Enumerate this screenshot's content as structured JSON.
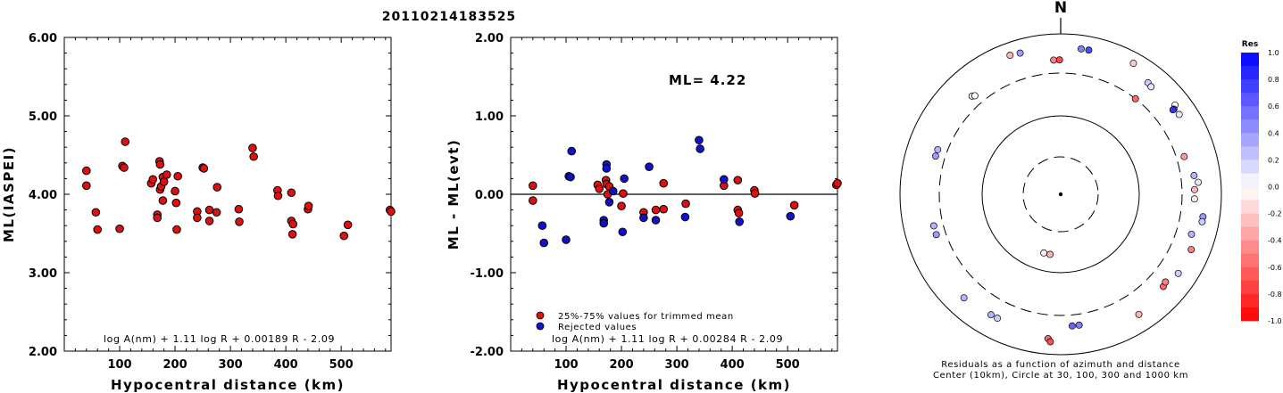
{
  "title": "20110214183525",
  "left_plot": {
    "ylabel": "ML(IASPEI)",
    "xlabel": "Hypocentral distance (km)",
    "equation": "log A(nm) + 1.11 log R + 0.00189 R - 2.09",
    "ytick_labels": [
      "2.00",
      "3.00",
      "4.00",
      "5.00",
      "6.00"
    ],
    "xtick_labels": [
      "100",
      "200",
      "300",
      "400",
      "500"
    ]
  },
  "middle_plot": {
    "ylabel": "ML - ML(evt)",
    "xlabel": "Hypocentral distance (km)",
    "equation": "log A(nm) + 1.11 log R + 0.00284 R - 2.09",
    "ml_text": "ML= 4.22",
    "legend_used": "25%-75% values for trimmed mean",
    "legend_rejected": "Rejected values",
    "ytick_labels": [
      "-2.00",
      "-1.00",
      "0.00",
      "1.00",
      "2.00"
    ],
    "xtick_labels": [
      "100",
      "200",
      "300",
      "400",
      "500"
    ]
  },
  "polar_plot": {
    "north_label": "N",
    "caption_line1": "Residuals as a function of azimuth and distance",
    "caption_line2": "Center (10km), Circle at 30, 100, 300 and 1000 km"
  },
  "colorbar": {
    "title": "Res",
    "labels": [
      "1.0",
      "0.8",
      "0.6",
      "0.4",
      "0.2",
      "0.0",
      "-0.2",
      "-0.4",
      "-0.6",
      "-0.8",
      "-1.0"
    ]
  },
  "colors": {
    "used": "#dd1111",
    "rejected": "#1111cc",
    "residual_pos": "#0000ff",
    "residual_neg": "#ff0000"
  },
  "chart_data": [
    {
      "type": "scatter",
      "ylabel": "ML(IASPEI)",
      "xlabel": "Hypocentral distance (km)",
      "xlim": [
        0,
        590
      ],
      "ylim": [
        2.0,
        6.0
      ],
      "points": [
        [
          40,
          4.3
        ],
        [
          40,
          4.11
        ],
        [
          57,
          3.77
        ],
        [
          60,
          3.55
        ],
        [
          100,
          3.56
        ],
        [
          105,
          4.36
        ],
        [
          108,
          4.34
        ],
        [
          110,
          4.67
        ],
        [
          157,
          4.14
        ],
        [
          160,
          4.19
        ],
        [
          168,
          3.74
        ],
        [
          168,
          3.7
        ],
        [
          172,
          4.42
        ],
        [
          173,
          4.38
        ],
        [
          173,
          4.06
        ],
        [
          175,
          4.1
        ],
        [
          178,
          3.92
        ],
        [
          178,
          4.22
        ],
        [
          180,
          4.16
        ],
        [
          185,
          4.25
        ],
        [
          200,
          4.04
        ],
        [
          202,
          3.89
        ],
        [
          203,
          3.55
        ],
        [
          205,
          4.23
        ],
        [
          240,
          3.78
        ],
        [
          240,
          3.7
        ],
        [
          250,
          4.34
        ],
        [
          252,
          4.33
        ],
        [
          262,
          3.8
        ],
        [
          262,
          3.66
        ],
        [
          275,
          3.77
        ],
        [
          276,
          4.09
        ],
        [
          315,
          3.81
        ],
        [
          316,
          3.65
        ],
        [
          340,
          4.59
        ],
        [
          342,
          4.48
        ],
        [
          385,
          4.05
        ],
        [
          386,
          3.98
        ],
        [
          410,
          4.02
        ],
        [
          410,
          3.66
        ],
        [
          412,
          3.49
        ],
        [
          413,
          3.62
        ],
        [
          440,
          3.81
        ],
        [
          441,
          3.85
        ],
        [
          505,
          3.47
        ],
        [
          512,
          3.61
        ],
        [
          588,
          3.8
        ],
        [
          590,
          3.78
        ]
      ]
    },
    {
      "type": "scatter",
      "ylabel": "ML - ML(evt)",
      "xlabel": "Hypocentral distance (km)",
      "xlim": [
        0,
        590
      ],
      "ylim": [
        -2.0,
        2.0
      ],
      "reference_line": 0.0,
      "series": [
        {
          "name": "25%-75% values for trimmed mean",
          "points": [
            [
              40,
              0.11
            ],
            [
              40,
              -0.08
            ],
            [
              157,
              0.12
            ],
            [
              160,
              0.07
            ],
            [
              172,
              0.18
            ],
            [
              173,
              0.13
            ],
            [
              175,
              0.0
            ],
            [
              178,
              0.1
            ],
            [
              200,
              -0.15
            ],
            [
              203,
              0.01
            ],
            [
              240,
              -0.23
            ],
            [
              262,
              -0.2
            ],
            [
              276,
              -0.19
            ],
            [
              276,
              0.14
            ],
            [
              316,
              -0.12
            ],
            [
              385,
              0.11
            ],
            [
              410,
              0.18
            ],
            [
              410,
              -0.2
            ],
            [
              412,
              -0.24
            ],
            [
              440,
              0.05
            ],
            [
              441,
              0.01
            ],
            [
              512,
              -0.14
            ],
            [
              588,
              0.12
            ],
            [
              590,
              0.14
            ]
          ]
        },
        {
          "name": "Rejected values",
          "points": [
            [
              57,
              -0.4
            ],
            [
              60,
              -0.62
            ],
            [
              100,
              -0.58
            ],
            [
              105,
              0.23
            ],
            [
              108,
              0.22
            ],
            [
              110,
              0.55
            ],
            [
              168,
              -0.33
            ],
            [
              168,
              -0.37
            ],
            [
              173,
              0.38
            ],
            [
              173,
              0.33
            ],
            [
              178,
              -0.1
            ],
            [
              185,
              0.04
            ],
            [
              202,
              -0.48
            ],
            [
              205,
              0.2
            ],
            [
              240,
              -0.3
            ],
            [
              250,
              0.35
            ],
            [
              262,
              -0.33
            ],
            [
              315,
              -0.29
            ],
            [
              340,
              0.69
            ],
            [
              342,
              0.58
            ],
            [
              385,
              0.19
            ],
            [
              413,
              -0.35
            ],
            [
              505,
              -0.28
            ]
          ]
        }
      ]
    },
    {
      "type": "scatter",
      "coordinate_system": "polar",
      "description": "Residuals as a function of azimuth and distance",
      "rings_km": [
        30,
        100,
        300,
        1000
      ],
      "center_km": 10,
      "points_azimuth_deg_distance_km_residual": [
        [
          -20,
          680,
          -0.3
        ],
        [
          -16,
          660,
          0.4
        ],
        [
          -3,
          450,
          -0.5
        ],
        [
          -0.5,
          450,
          -0.7
        ],
        [
          8,
          660,
          0.5
        ],
        [
          11,
          660,
          0.7
        ],
        [
          29,
          720,
          -0.2
        ],
        [
          38,
          560,
          0.2
        ],
        [
          40,
          540,
          0.1
        ],
        [
          52,
          620,
          0.0
        ],
        [
          53,
          560,
          0.6
        ],
        [
          53,
          540,
          0.8
        ],
        [
          56,
          580,
          0.1
        ],
        [
          38,
          300,
          -0.6
        ],
        [
          73,
          380,
          -0.4
        ],
        [
          82,
          450,
          0.3
        ],
        [
          85,
          500,
          0.1
        ],
        [
          88,
          440,
          -0.3
        ],
        [
          92,
          440,
          -0.1
        ],
        [
          99,
          600,
          0.4
        ],
        [
          101,
          600,
          0.2
        ],
        [
          107,
          480,
          0.3
        ],
        [
          113,
          560,
          -0.5
        ],
        [
          124,
          560,
          0.2
        ],
        [
          132,
          500,
          -0.6
        ],
        [
          130,
          480,
          -0.5
        ],
        [
          147,
          590,
          -0.3
        ],
        [
          172,
          420,
          0.5
        ],
        [
          175,
          420,
          0.6
        ],
        [
          185,
          620,
          -0.6
        ],
        [
          184,
          680,
          -0.7
        ],
        [
          207,
          520,
          0.2
        ],
        [
          210,
          520,
          0.3
        ],
        [
          223,
          560,
          0.3
        ],
        [
          190,
          60,
          -0.3
        ],
        [
          196,
          60,
          -0.1
        ],
        [
          252,
          400,
          0.4
        ],
        [
          256,
          400,
          0.3
        ],
        [
          287,
          400,
          0.4
        ],
        [
          290,
          400,
          0.3
        ],
        [
          318,
          420,
          0.1
        ],
        [
          319,
          400,
          0.0
        ]
      ]
    }
  ]
}
